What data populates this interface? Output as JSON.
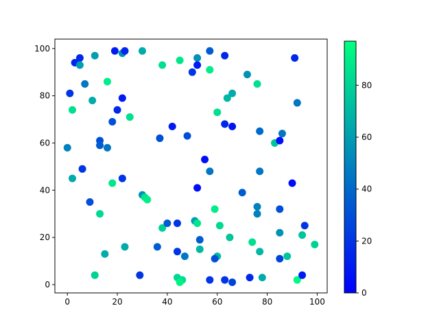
{
  "chart_data": {
    "type": "scatter",
    "title": "",
    "xlabel": "",
    "ylabel": "",
    "xlim": [
      -5,
      104
    ],
    "ylim": [
      -3.5,
      104
    ],
    "xticks": [
      0,
      20,
      40,
      60,
      80,
      100
    ],
    "yticks": [
      0,
      20,
      40,
      60,
      80,
      100
    ],
    "grid": false,
    "colormap": "winter",
    "colorbar": {
      "range": [
        0,
        97
      ],
      "ticks": [
        0,
        20,
        40,
        60,
        80
      ]
    },
    "points": [
      {
        "x": 3,
        "y": 94,
        "c": 15
      },
      {
        "x": 5,
        "y": 96,
        "c": 15
      },
      {
        "x": 5,
        "y": 93,
        "c": 60
      },
      {
        "x": 11,
        "y": 97,
        "c": 60
      },
      {
        "x": 19,
        "y": 99,
        "c": 10
      },
      {
        "x": 22,
        "y": 98,
        "c": 55
      },
      {
        "x": 23,
        "y": 99,
        "c": 15
      },
      {
        "x": 30,
        "y": 99,
        "c": 65
      },
      {
        "x": 1,
        "y": 81,
        "c": 20
      },
      {
        "x": 7,
        "y": 85,
        "c": 45
      },
      {
        "x": 16,
        "y": 86,
        "c": 90
      },
      {
        "x": 10,
        "y": 78,
        "c": 65
      },
      {
        "x": 2,
        "y": 74,
        "c": 85
      },
      {
        "x": 22,
        "y": 79,
        "c": 10
      },
      {
        "x": 20,
        "y": 74,
        "c": 15
      },
      {
        "x": 18,
        "y": 69,
        "c": 30
      },
      {
        "x": 25,
        "y": 71,
        "c": 85
      },
      {
        "x": 13,
        "y": 61,
        "c": 30
      },
      {
        "x": 13,
        "y": 59,
        "c": 35
      },
      {
        "x": 16,
        "y": 58,
        "c": 45
      },
      {
        "x": 0,
        "y": 58,
        "c": 50
      },
      {
        "x": 6,
        "y": 49,
        "c": 20
      },
      {
        "x": 2,
        "y": 45,
        "c": 65
      },
      {
        "x": 22,
        "y": 45,
        "c": 20
      },
      {
        "x": 9,
        "y": 35,
        "c": 30
      },
      {
        "x": 18,
        "y": 43,
        "c": 88
      },
      {
        "x": 13,
        "y": 30,
        "c": 82
      },
      {
        "x": 30,
        "y": 38,
        "c": 55
      },
      {
        "x": 31,
        "y": 37,
        "c": 88
      },
      {
        "x": 32,
        "y": 36,
        "c": 90
      },
      {
        "x": 15,
        "y": 13,
        "c": 65
      },
      {
        "x": 23,
        "y": 16,
        "c": 65
      },
      {
        "x": 11,
        "y": 4,
        "c": 80
      },
      {
        "x": 29,
        "y": 4,
        "c": 20
      },
      {
        "x": 36,
        "y": 16,
        "c": 35
      },
      {
        "x": 38,
        "y": 24,
        "c": 80
      },
      {
        "x": 40,
        "y": 26,
        "c": 35
      },
      {
        "x": 44,
        "y": 26,
        "c": 20
      },
      {
        "x": 44,
        "y": 14,
        "c": 20
      },
      {
        "x": 47,
        "y": 12,
        "c": 45
      },
      {
        "x": 44,
        "y": 3,
        "c": 82
      },
      {
        "x": 46,
        "y": 2,
        "c": 85
      },
      {
        "x": 45,
        "y": 1,
        "c": 92
      },
      {
        "x": 38,
        "y": 93,
        "c": 85
      },
      {
        "x": 45,
        "y": 95,
        "c": 88
      },
      {
        "x": 42,
        "y": 67,
        "c": 10
      },
      {
        "x": 37,
        "y": 62,
        "c": 30
      },
      {
        "x": 48,
        "y": 63,
        "c": 30
      },
      {
        "x": 52,
        "y": 96,
        "c": 55
      },
      {
        "x": 52,
        "y": 93,
        "c": 10
      },
      {
        "x": 50,
        "y": 90,
        "c": 20
      },
      {
        "x": 57,
        "y": 99,
        "c": 35
      },
      {
        "x": 63,
        "y": 97,
        "c": 15
      },
      {
        "x": 57,
        "y": 91,
        "c": 90
      },
      {
        "x": 60,
        "y": 73,
        "c": 85
      },
      {
        "x": 64,
        "y": 79,
        "c": 70
      },
      {
        "x": 66,
        "y": 81,
        "c": 65
      },
      {
        "x": 63,
        "y": 68,
        "c": 15
      },
      {
        "x": 66,
        "y": 67,
        "c": 8
      },
      {
        "x": 72,
        "y": 89,
        "c": 55
      },
      {
        "x": 76,
        "y": 85,
        "c": 85
      },
      {
        "x": 77,
        "y": 65,
        "c": 40
      },
      {
        "x": 86,
        "y": 64,
        "c": 45
      },
      {
        "x": 83,
        "y": 60,
        "c": 75
      },
      {
        "x": 85,
        "y": 61,
        "c": 5
      },
      {
        "x": 91,
        "y": 96,
        "c": 15
      },
      {
        "x": 92,
        "y": 77,
        "c": 45
      },
      {
        "x": 55,
        "y": 53,
        "c": 5
      },
      {
        "x": 57,
        "y": 48,
        "c": 45
      },
      {
        "x": 52,
        "y": 41,
        "c": 5
      },
      {
        "x": 70,
        "y": 39,
        "c": 35
      },
      {
        "x": 77,
        "y": 48,
        "c": 45
      },
      {
        "x": 76,
        "y": 33,
        "c": 50
      },
      {
        "x": 76,
        "y": 30,
        "c": 50
      },
      {
        "x": 85,
        "y": 32,
        "c": 30
      },
      {
        "x": 90,
        "y": 43,
        "c": 5
      },
      {
        "x": 95,
        "y": 25,
        "c": 20
      },
      {
        "x": 59,
        "y": 32,
        "c": 90
      },
      {
        "x": 61,
        "y": 25,
        "c": 82
      },
      {
        "x": 51,
        "y": 27,
        "c": 60
      },
      {
        "x": 52,
        "y": 26,
        "c": 88
      },
      {
        "x": 53,
        "y": 19,
        "c": 35
      },
      {
        "x": 53,
        "y": 15,
        "c": 70
      },
      {
        "x": 65,
        "y": 20,
        "c": 75
      },
      {
        "x": 60,
        "y": 12,
        "c": 70
      },
      {
        "x": 59,
        "y": 11,
        "c": 30
      },
      {
        "x": 74,
        "y": 18,
        "c": 85
      },
      {
        "x": 77,
        "y": 14,
        "c": 70
      },
      {
        "x": 85,
        "y": 22,
        "c": 55
      },
      {
        "x": 94,
        "y": 21,
        "c": 75
      },
      {
        "x": 99,
        "y": 17,
        "c": 80
      },
      {
        "x": 88,
        "y": 12,
        "c": 75
      },
      {
        "x": 85,
        "y": 11,
        "c": 25
      },
      {
        "x": 78,
        "y": 3,
        "c": 65
      },
      {
        "x": 73,
        "y": 3,
        "c": 15
      },
      {
        "x": 57,
        "y": 2,
        "c": 20
      },
      {
        "x": 63,
        "y": 2,
        "c": 20
      },
      {
        "x": 66,
        "y": 1,
        "c": 25
      },
      {
        "x": 92,
        "y": 2,
        "c": 95
      },
      {
        "x": 94,
        "y": 4,
        "c": 10
      }
    ]
  }
}
